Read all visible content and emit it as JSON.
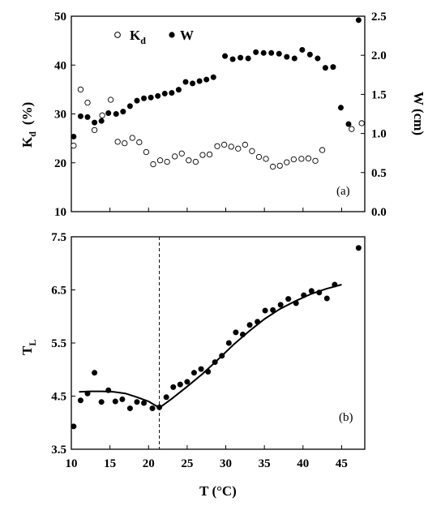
{
  "chart_data": [
    {
      "panel": "(a)",
      "type": "scatter",
      "ylabel_main": "K",
      "ylabel_sub": "d",
      "ylabel_unit": "(%)",
      "y2label": "W   (cm)",
      "xlim": [
        10,
        48
      ],
      "ylim": [
        10,
        50
      ],
      "y2lim": [
        0,
        2.5
      ],
      "yticks": [
        "10",
        "20",
        "30",
        "40",
        "50"
      ],
      "y2ticks": [
        "0.0",
        "0.5",
        "1.0",
        "1.5",
        "2.0",
        "2.5"
      ],
      "legend": {
        "kd_main": "K",
        "kd_sub": "d",
        "w": "W"
      },
      "series": [
        {
          "name": "Kd",
          "marker": "open-circle",
          "axis": "left",
          "points": [
            [
              10.3,
              23.5
            ],
            [
              11.2,
              35.0
            ],
            [
              12.1,
              32.3
            ],
            [
              13.0,
              26.7
            ],
            [
              14.0,
              29.7
            ],
            [
              15.1,
              32.9
            ],
            [
              16.0,
              24.3
            ],
            [
              16.9,
              24.0
            ],
            [
              17.9,
              25.1
            ],
            [
              18.8,
              24.2
            ],
            [
              19.7,
              22.2
            ],
            [
              20.6,
              19.7
            ],
            [
              21.5,
              20.5
            ],
            [
              22.4,
              20.2
            ],
            [
              23.4,
              21.3
            ],
            [
              24.3,
              21.9
            ],
            [
              25.2,
              20.5
            ],
            [
              26.1,
              20.2
            ],
            [
              27.0,
              21.6
            ],
            [
              27.9,
              21.7
            ],
            [
              28.9,
              23.4
            ],
            [
              29.8,
              23.7
            ],
            [
              30.7,
              23.3
            ],
            [
              31.6,
              22.9
            ],
            [
              32.5,
              23.7
            ],
            [
              33.4,
              22.4
            ],
            [
              34.3,
              21.2
            ],
            [
              35.2,
              20.8
            ],
            [
              36.1,
              19.2
            ],
            [
              37.0,
              19.4
            ],
            [
              37.9,
              20.1
            ],
            [
              38.8,
              20.7
            ],
            [
              39.8,
              20.8
            ],
            [
              40.7,
              20.9
            ],
            [
              41.6,
              20.4
            ],
            [
              42.5,
              22.6
            ],
            [
              46.3,
              26.9
            ],
            [
              47.6,
              28.1
            ]
          ]
        },
        {
          "name": "W",
          "marker": "filled-circle",
          "axis": "right",
          "points": [
            [
              10.3,
              0.96
            ],
            [
              11.2,
              1.22
            ],
            [
              12.1,
              1.21
            ],
            [
              13.0,
              1.14
            ],
            [
              13.9,
              1.16
            ],
            [
              14.8,
              1.26
            ],
            [
              15.8,
              1.25
            ],
            [
              16.7,
              1.28
            ],
            [
              17.6,
              1.35
            ],
            [
              18.5,
              1.42
            ],
            [
              19.4,
              1.45
            ],
            [
              20.3,
              1.46
            ],
            [
              21.2,
              1.48
            ],
            [
              22.1,
              1.51
            ],
            [
              23.0,
              1.52
            ],
            [
              23.9,
              1.56
            ],
            [
              24.8,
              1.66
            ],
            [
              25.7,
              1.64
            ],
            [
              26.6,
              1.67
            ],
            [
              27.5,
              1.69
            ],
            [
              28.4,
              1.72
            ],
            [
              29.9,
              1.99
            ],
            [
              30.9,
              1.95
            ],
            [
              31.9,
              1.97
            ],
            [
              32.9,
              1.96
            ],
            [
              33.9,
              2.04
            ],
            [
              34.9,
              2.03
            ],
            [
              35.9,
              2.03
            ],
            [
              36.9,
              2.02
            ],
            [
              37.9,
              1.98
            ],
            [
              38.9,
              1.96
            ],
            [
              39.9,
              2.07
            ],
            [
              40.9,
              2.01
            ],
            [
              41.9,
              1.96
            ],
            [
              42.9,
              1.84
            ],
            [
              43.9,
              1.85
            ],
            [
              44.9,
              1.33
            ],
            [
              45.9,
              1.12
            ],
            [
              47.2,
              2.45
            ]
          ]
        }
      ]
    },
    {
      "panel": "(b)",
      "type": "scatter",
      "xlabel": "T  (°C)",
      "ylabel_main": "T",
      "ylabel_sub": "L",
      "xlim": [
        10,
        48
      ],
      "ylim": [
        3.5,
        7.5
      ],
      "xticks": [
        "10",
        "15",
        "20",
        "25",
        "30",
        "35",
        "40",
        "45"
      ],
      "yticks": [
        "3.5",
        "4.5",
        "5.5",
        "6.5",
        "7.5"
      ],
      "breakpoint_x": 21.4,
      "series": [
        {
          "name": "TL",
          "marker": "filled-circle",
          "points": [
            [
              10.3,
              3.93
            ],
            [
              11.2,
              4.42
            ],
            [
              12.1,
              4.55
            ],
            [
              13.0,
              4.94
            ],
            [
              13.9,
              4.39
            ],
            [
              14.8,
              4.61
            ],
            [
              15.7,
              4.4
            ],
            [
              16.6,
              4.44
            ],
            [
              17.6,
              4.27
            ],
            [
              18.5,
              4.39
            ],
            [
              19.4,
              4.37
            ],
            [
              20.5,
              4.27
            ],
            [
              21.4,
              4.29
            ],
            [
              22.3,
              4.48
            ],
            [
              23.2,
              4.67
            ],
            [
              24.1,
              4.72
            ],
            [
              25.0,
              4.77
            ],
            [
              25.9,
              4.94
            ],
            [
              26.8,
              5.01
            ],
            [
              27.7,
              4.96
            ],
            [
              28.6,
              5.14
            ],
            [
              29.5,
              5.26
            ],
            [
              30.4,
              5.5
            ],
            [
              31.3,
              5.7
            ],
            [
              32.2,
              5.66
            ],
            [
              33.1,
              5.84
            ],
            [
              34.1,
              5.9
            ],
            [
              35.1,
              6.11
            ],
            [
              36.1,
              6.12
            ],
            [
              37.1,
              6.22
            ],
            [
              38.1,
              6.33
            ],
            [
              39.1,
              6.25
            ],
            [
              40.1,
              6.4
            ],
            [
              41.1,
              6.48
            ],
            [
              42.1,
              6.45
            ],
            [
              43.1,
              6.34
            ],
            [
              44.1,
              6.6
            ],
            [
              47.2,
              7.29
            ]
          ]
        },
        {
          "name": "fit",
          "type": "line",
          "points": [
            [
              11.0,
              4.58
            ],
            [
              12.5,
              4.59
            ],
            [
              14.0,
              4.59
            ],
            [
              15.5,
              4.58
            ],
            [
              17.0,
              4.55
            ],
            [
              18.5,
              4.48
            ],
            [
              20.0,
              4.4
            ],
            [
              21.4,
              4.28
            ],
            [
              23.0,
              4.45
            ],
            [
              25.0,
              4.68
            ],
            [
              27.0,
              4.92
            ],
            [
              29.0,
              5.19
            ],
            [
              31.0,
              5.47
            ],
            [
              33.0,
              5.72
            ],
            [
              35.0,
              5.95
            ],
            [
              37.0,
              6.14
            ],
            [
              39.0,
              6.29
            ],
            [
              41.0,
              6.42
            ],
            [
              43.0,
              6.52
            ],
            [
              45.0,
              6.6
            ]
          ]
        }
      ]
    }
  ]
}
